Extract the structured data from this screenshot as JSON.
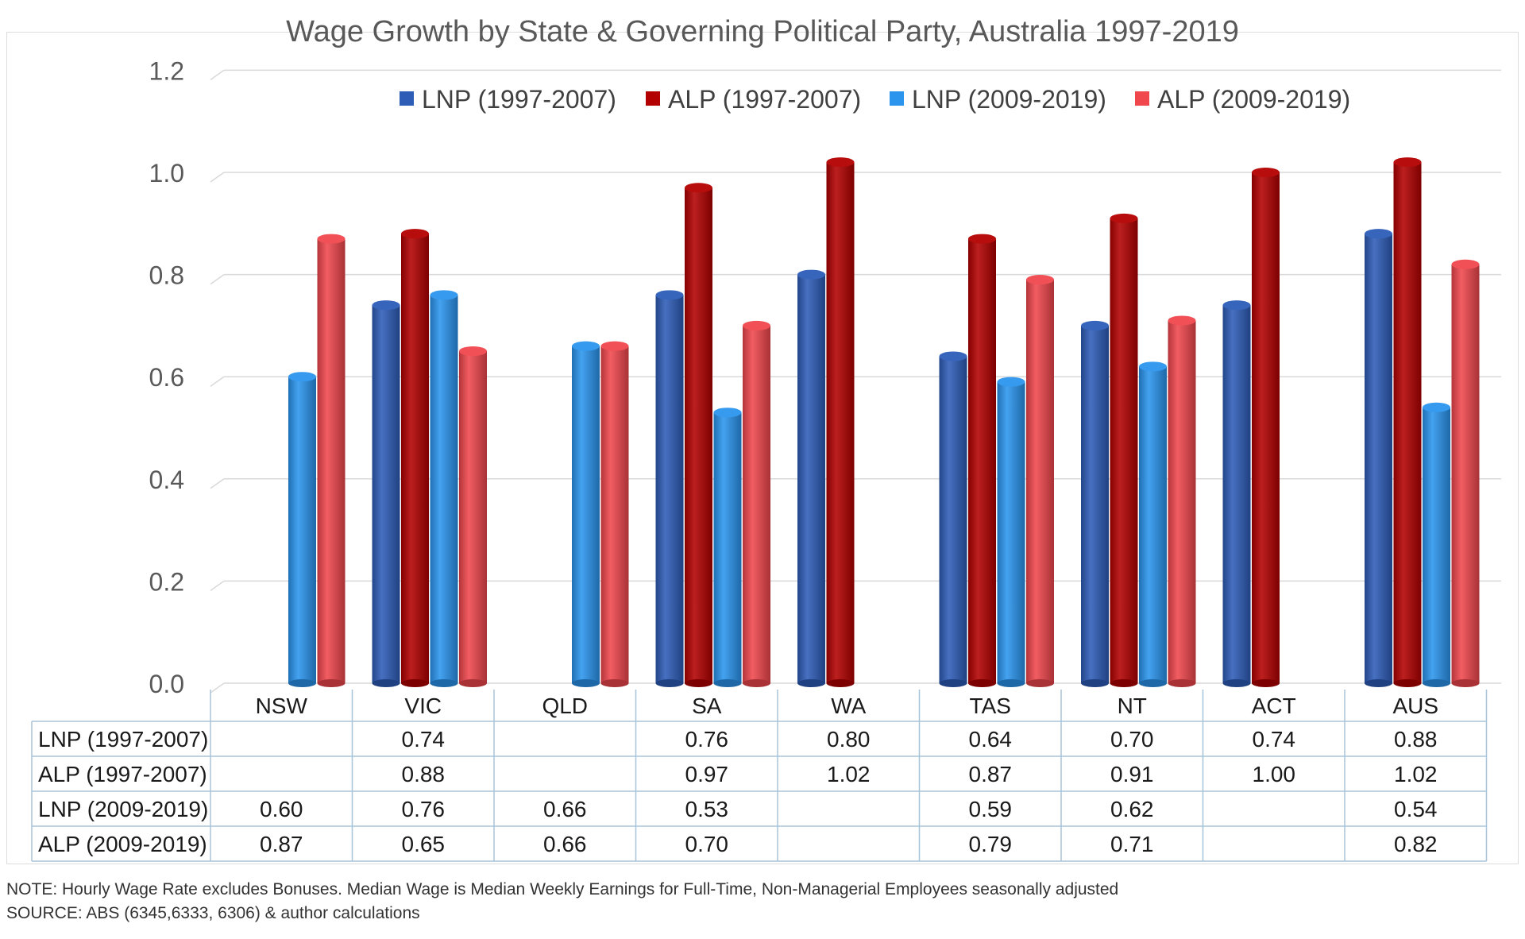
{
  "chart_data": {
    "type": "bar",
    "title": "Wage Growth by State & Governing Political Party, Australia 1997-2019",
    "categories": [
      "NSW",
      "VIC",
      "QLD",
      "SA",
      "WA",
      "TAS",
      "NT",
      "ACT",
      "AUS"
    ],
    "series": [
      {
        "name": "LNP (1997-2007)",
        "color": "#2E5DB8",
        "values": [
          null,
          0.74,
          null,
          0.76,
          0.8,
          0.64,
          0.7,
          0.74,
          0.88
        ],
        "labels": [
          "",
          "0.74",
          "",
          "0.76",
          "0.80",
          "0.64",
          "0.70",
          "0.74",
          "0.88"
        ]
      },
      {
        "name": "ALP (1997-2007)",
        "color": "#B30000",
        "values": [
          null,
          0.88,
          null,
          0.97,
          1.02,
          0.87,
          0.91,
          1.0,
          1.02
        ],
        "labels": [
          "",
          "0.88",
          "",
          "0.97",
          "1.02",
          "0.87",
          "0.91",
          "1.00",
          "1.02"
        ]
      },
      {
        "name": "LNP (2009-2019)",
        "color": "#2B95EE",
        "values": [
          0.6,
          0.76,
          0.66,
          0.53,
          null,
          0.59,
          0.62,
          null,
          0.54
        ],
        "labels": [
          "0.60",
          "0.76",
          "0.66",
          "0.53",
          "",
          "0.59",
          "0.62",
          "",
          "0.54"
        ]
      },
      {
        "name": "ALP (2009-2019)",
        "color": "#F0474D",
        "values": [
          0.87,
          0.65,
          0.66,
          0.7,
          null,
          0.79,
          0.71,
          null,
          0.82
        ],
        "labels": [
          "0.87",
          "0.65",
          "0.66",
          "0.70",
          "",
          "0.79",
          "0.71",
          "",
          "0.82"
        ]
      }
    ],
    "yticks": [
      "0.0",
      "0.2",
      "0.4",
      "0.6",
      "0.8",
      "1.0",
      "1.2"
    ],
    "ylim": [
      0,
      1.2
    ],
    "grid": true,
    "legend": "top",
    "data_table": true
  },
  "notes": {
    "note": "NOTE: Hourly Wage Rate excludes Bonuses. Median Wage is Median Weekly Earnings for Full-Time, Non-Managerial Employees seasonally adjusted",
    "source": "SOURCE: ABS (6345,6333, 6306) & author calculations"
  }
}
